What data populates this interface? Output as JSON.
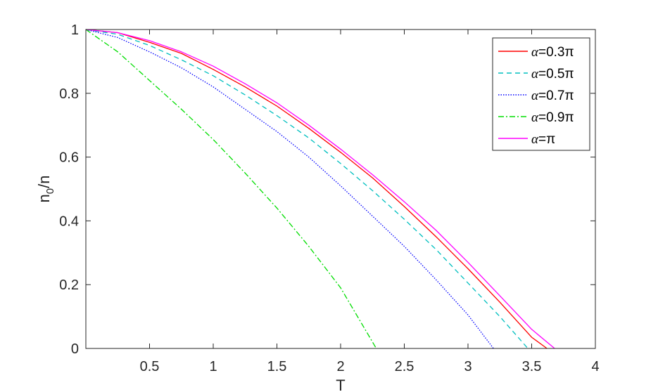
{
  "chart_data": {
    "type": "line",
    "xlabel": "T",
    "ylabel_main": "n",
    "ylabel_sub": "0",
    "ylabel_tail": "/n",
    "xlim": [
      0,
      4
    ],
    "ylim": [
      0,
      1
    ],
    "xticks": [
      0.5,
      1,
      1.5,
      2,
      2.5,
      3,
      3.5,
      4
    ],
    "xtick_labels": [
      "0.5",
      "1",
      "1.5",
      "2",
      "2.5",
      "3",
      "3.5",
      "4"
    ],
    "yticks": [
      0,
      0.2,
      0.4,
      0.6,
      0.8,
      1
    ],
    "ytick_labels": [
      "0",
      "0.2",
      "0.4",
      "0.6",
      "0.8",
      "1"
    ],
    "grid": false,
    "legend_position": "top-right",
    "series": [
      {
        "name": "α=0.3π",
        "label_symbol": "α",
        "label_value": "=0.3π",
        "color": "#ff0000",
        "dash": "solid",
        "x": [
          0,
          0.25,
          0.5,
          0.75,
          1.0,
          1.25,
          1.5,
          1.75,
          2.0,
          2.25,
          2.5,
          2.75,
          3.0,
          3.25,
          3.5,
          3.62
        ],
        "y": [
          1.0,
          0.99,
          0.96,
          0.925,
          0.875,
          0.82,
          0.76,
          0.69,
          0.615,
          0.535,
          0.445,
          0.35,
          0.25,
          0.145,
          0.035,
          0
        ]
      },
      {
        "name": "α=0.5π",
        "label_symbol": "α",
        "label_value": "=0.5π",
        "color": "#00bfbf",
        "dash": "dashed",
        "x": [
          0,
          0.25,
          0.5,
          0.75,
          1.0,
          1.25,
          1.5,
          1.75,
          2.0,
          2.25,
          2.5,
          2.75,
          3.0,
          3.25,
          3.47
        ],
        "y": [
          1.0,
          0.985,
          0.95,
          0.905,
          0.855,
          0.795,
          0.73,
          0.66,
          0.58,
          0.495,
          0.405,
          0.31,
          0.205,
          0.1,
          0
        ]
      },
      {
        "name": "α=0.7π",
        "label_symbol": "α",
        "label_value": "=0.7π",
        "color": "#0000ff",
        "dash": "dotted",
        "x": [
          0,
          0.25,
          0.5,
          0.75,
          1.0,
          1.25,
          1.5,
          1.75,
          2.0,
          2.25,
          2.5,
          2.75,
          3.0,
          3.2
        ],
        "y": [
          1.0,
          0.975,
          0.93,
          0.88,
          0.82,
          0.75,
          0.68,
          0.6,
          0.51,
          0.415,
          0.32,
          0.215,
          0.105,
          0
        ]
      },
      {
        "name": "α=0.9π",
        "label_symbol": "α",
        "label_value": "=0.9π",
        "color": "#00dd00",
        "dash": "dashdot",
        "x": [
          0,
          0.25,
          0.5,
          0.75,
          1.0,
          1.25,
          1.5,
          1.75,
          2.0,
          2.28
        ],
        "y": [
          1.0,
          0.93,
          0.84,
          0.75,
          0.655,
          0.55,
          0.44,
          0.32,
          0.19,
          0
        ]
      },
      {
        "name": "α=π",
        "label_symbol": "α",
        "label_value": "=π",
        "color": "#ff00ff",
        "dash": "solid",
        "x": [
          0,
          0.25,
          0.5,
          0.75,
          1.0,
          1.25,
          1.5,
          1.75,
          2.0,
          2.25,
          2.5,
          2.75,
          3.0,
          3.25,
          3.5,
          3.68
        ],
        "y": [
          1.0,
          0.99,
          0.965,
          0.93,
          0.885,
          0.83,
          0.77,
          0.7,
          0.625,
          0.545,
          0.46,
          0.37,
          0.27,
          0.165,
          0.06,
          0
        ]
      }
    ]
  }
}
